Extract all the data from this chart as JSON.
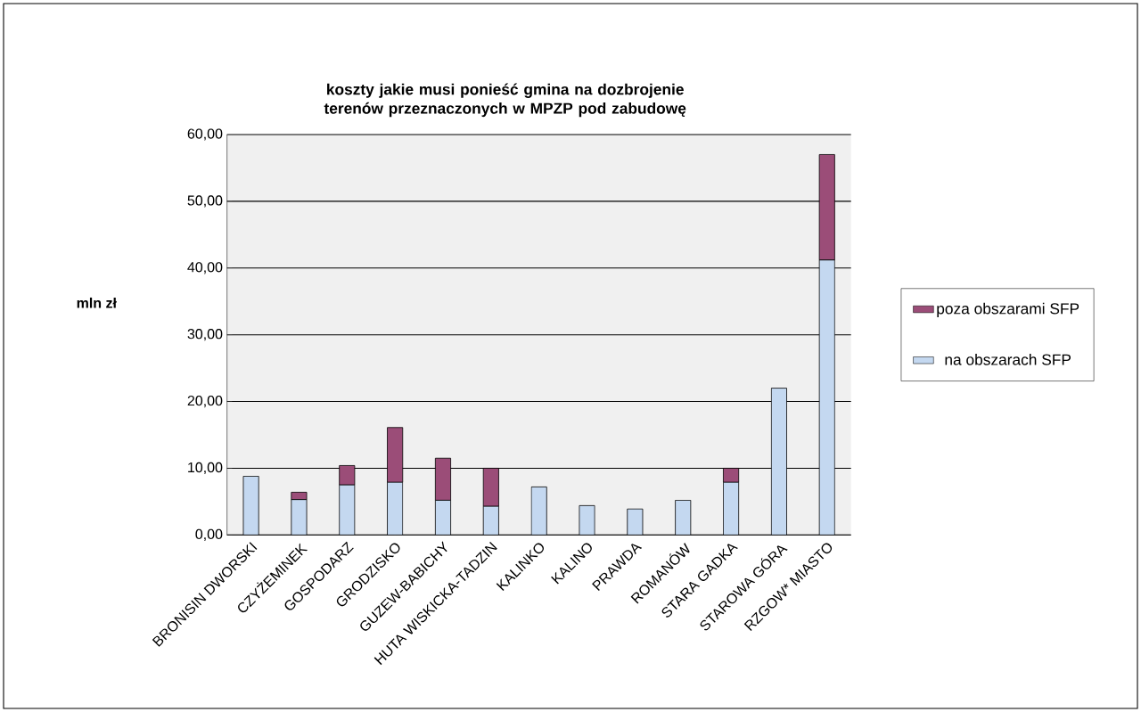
{
  "chart_data": {
    "type": "bar",
    "title": "koszty jakie musi ponieść gmina na dozbrojenie terenów przeznaczonych w MPZP pod zabudowę",
    "ylabel": "mln zł",
    "categories": [
      "BRONISIN DWORSKI",
      "CZYŻEMINEK",
      "GOSPODARZ",
      "GRODZISKO",
      "GUZEW-BABICHY",
      "HUTA WISKICKA-TADZIN",
      "KALINKO",
      "KALINO",
      "PRAWDA",
      "ROMANÓW",
      "STARA GADKA",
      "STAROWA GÓRA",
      "RZGOW* MIASTO"
    ],
    "series": [
      {
        "name": "na obszarach SFP",
        "color": "#c4d8f0",
        "values": [
          8.8,
          5.3,
          7.5,
          7.9,
          5.2,
          4.3,
          7.2,
          4.4,
          3.9,
          5.2,
          7.9,
          22.0,
          41.2
        ]
      },
      {
        "name": "poza obszarami SFP",
        "color": "#9b4d78",
        "values": [
          null,
          1.1,
          2.9,
          8.2,
          6.3,
          5.7,
          null,
          null,
          null,
          null,
          2.1,
          null,
          15.8
        ]
      }
    ],
    "stacked": true,
    "ylim": [
      0,
      60
    ],
    "yticks": [
      {
        "value": 0,
        "label": "0,00"
      },
      {
        "value": 10,
        "label": "10,00"
      },
      {
        "value": 20,
        "label": "20,00"
      },
      {
        "value": 30,
        "label": "30,00"
      },
      {
        "value": 40,
        "label": "40,00"
      },
      {
        "value": 50,
        "label": "50,00"
      },
      {
        "value": 60,
        "label": "60,00"
      }
    ],
    "grid": "y",
    "legend": "right"
  }
}
